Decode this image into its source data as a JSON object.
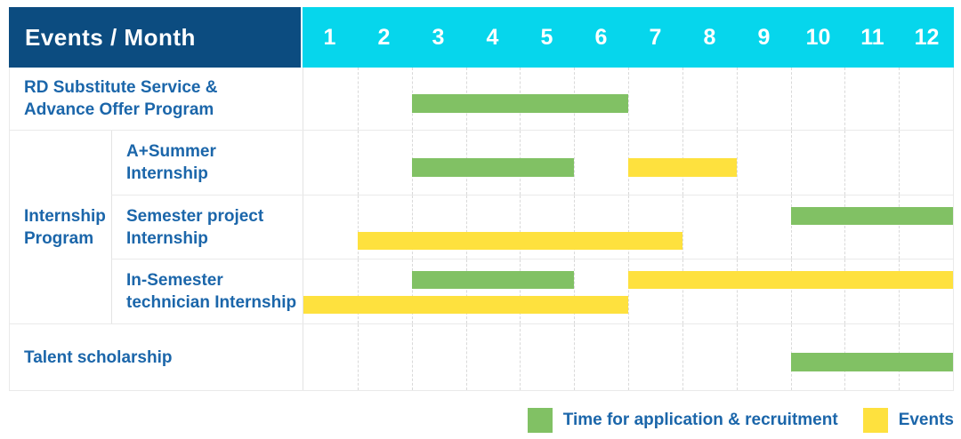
{
  "header": {
    "title": "Events / Month",
    "months": [
      "1",
      "2",
      "3",
      "4",
      "5",
      "6",
      "7",
      "8",
      "9",
      "10",
      "11",
      "12"
    ]
  },
  "colors": {
    "navy": "#0c4c80",
    "cyan": "#06d6ec",
    "green": "#81c164",
    "yellow": "#fee13e",
    "text_blue": "#1b66aa"
  },
  "legend": {
    "items": [
      {
        "swatch": "application",
        "label": "Time for application & recruitment"
      },
      {
        "swatch": "event",
        "label": "Events"
      }
    ]
  },
  "chart_data": {
    "type": "gantt",
    "title": "Events / Month",
    "x_unit": "month",
    "x_range": [
      1,
      12
    ],
    "grid": "dashed-vertical",
    "legend_position": "bottom-right",
    "roles": {
      "application": {
        "label": "Time for application & recruitment",
        "color": "#81c164"
      },
      "event": {
        "label": "Events",
        "color": "#fee13e"
      }
    },
    "rows": [
      {
        "label_lines": [
          "RD Substitute Service &",
          "Advance Offer Program"
        ],
        "group": null,
        "bars": [
          {
            "role": "application",
            "start_month": 3,
            "end_month": 6,
            "lane": "center"
          }
        ]
      },
      {
        "label_lines": [
          "A+Summer",
          "Internship"
        ],
        "group": "Internship Program",
        "bars": [
          {
            "role": "application",
            "start_month": 3,
            "end_month": 5,
            "lane": "center"
          },
          {
            "role": "event",
            "start_month": 7,
            "end_month": 8,
            "lane": "center"
          }
        ]
      },
      {
        "label_lines": [
          "Semester project",
          "Internship"
        ],
        "group": "Internship Program",
        "bars": [
          {
            "role": "application",
            "start_month": 10,
            "end_month": 12,
            "lane": "top"
          },
          {
            "role": "event",
            "start_month": 2,
            "end_month": 7,
            "lane": "bottom"
          }
        ]
      },
      {
        "label_lines": [
          "In-Semester",
          "technician Internship"
        ],
        "group": "Internship Program",
        "bars": [
          {
            "role": "application",
            "start_month": 3,
            "end_month": 5,
            "lane": "top"
          },
          {
            "role": "event",
            "start_month": 7,
            "end_month": 12,
            "lane": "top"
          },
          {
            "role": "event",
            "start_month": 1,
            "end_month": 6,
            "lane": "bottom"
          }
        ]
      },
      {
        "label_lines": [
          "Talent scholarship"
        ],
        "group": null,
        "bars": [
          {
            "role": "application",
            "start_month": 10,
            "end_month": 12,
            "lane": "center"
          }
        ]
      }
    ],
    "groups": [
      {
        "label_lines": [
          "Internship",
          "Program"
        ],
        "name": "Internship Program"
      }
    ]
  }
}
